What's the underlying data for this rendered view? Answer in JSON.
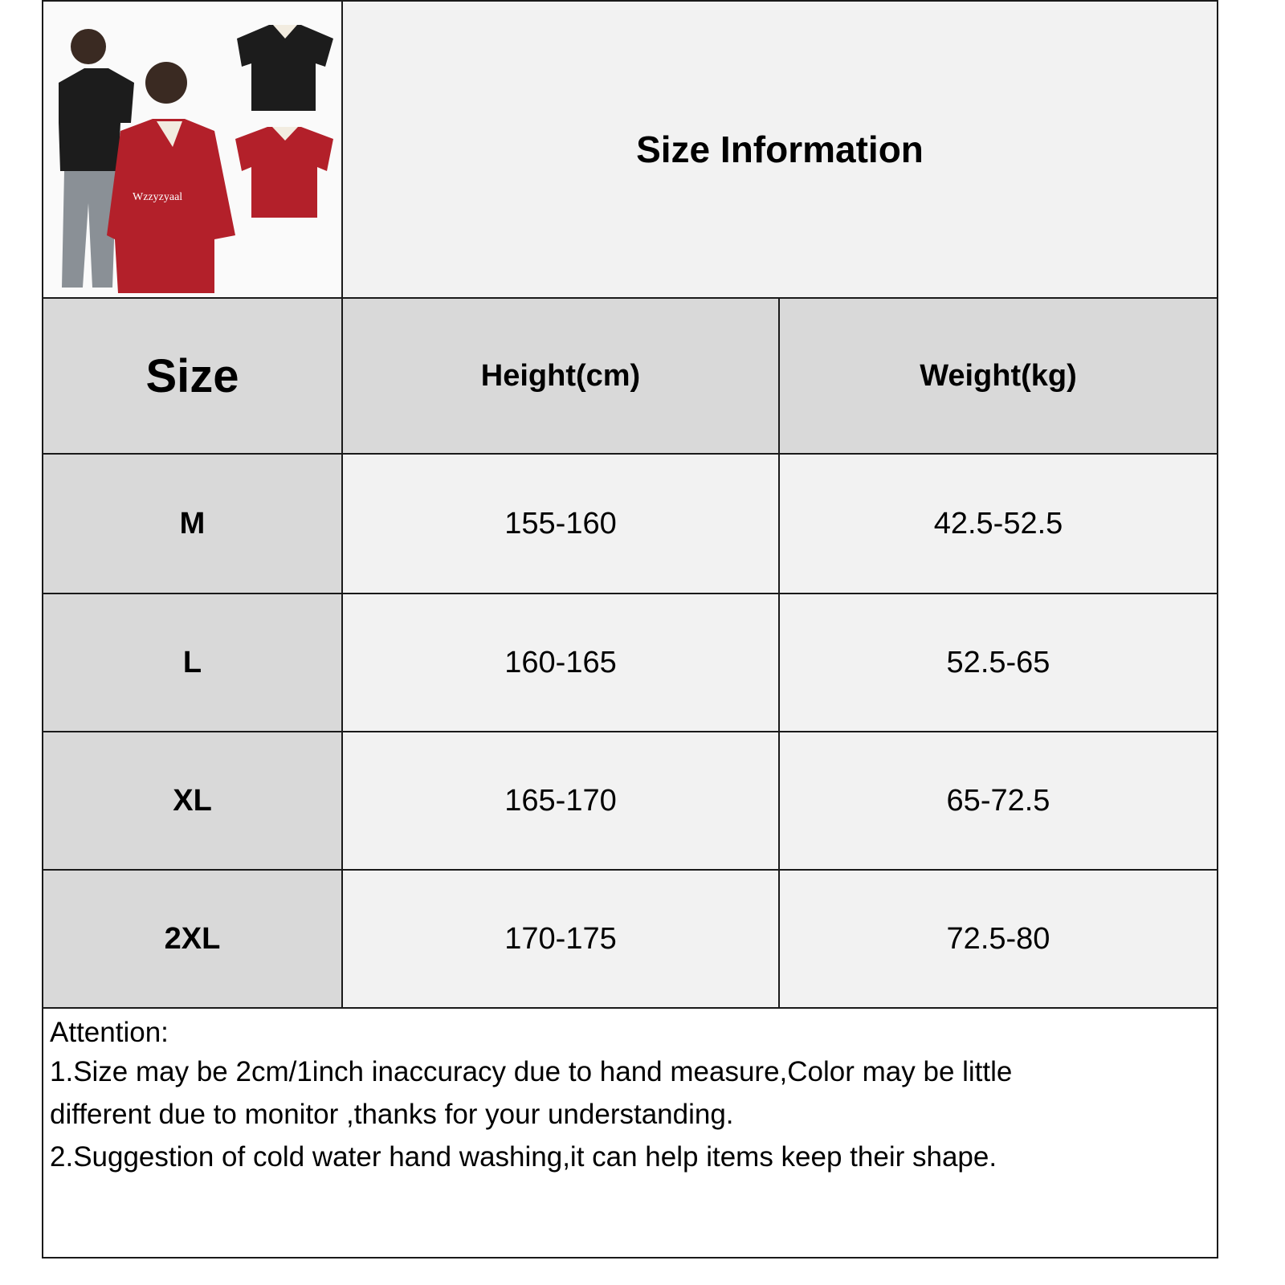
{
  "title": "Size Information",
  "product_image": {
    "alt": "Women's oversized jersey t-shirt in black and red",
    "colors": [
      "#1c1c1c",
      "#b3202a"
    ],
    "shirt_print": "Wzzyzyaal"
  },
  "table": {
    "headers": [
      "Size",
      "Height(cm)",
      "Weight(kg)"
    ],
    "rows": [
      {
        "size": "M",
        "height": "155-160",
        "weight": "42.5-52.5"
      },
      {
        "size": "L",
        "height": "160-165",
        "weight": "52.5-65"
      },
      {
        "size": "XL",
        "height": "165-170",
        "weight": "65-72.5"
      },
      {
        "size": "2XL",
        "height": "170-175",
        "weight": "72.5-80"
      }
    ]
  },
  "attention": {
    "heading": "Attention:",
    "lines": [
      "1.Size may be 2cm/1inch inaccuracy due to hand measure,Color may be little",
      "different due to monitor ,thanks for your understanding.",
      "2.Suggestion of cold water hand washing,it can help items keep their shape."
    ]
  }
}
